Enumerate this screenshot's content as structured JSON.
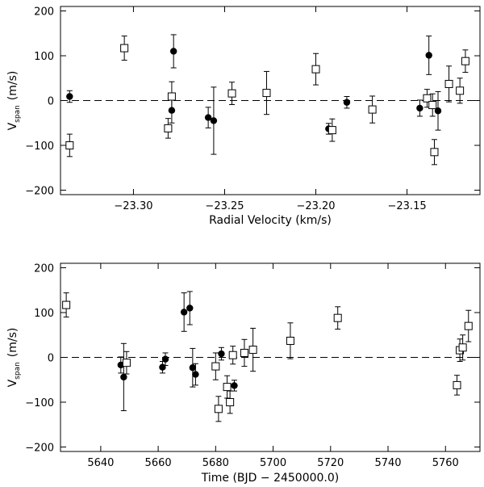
{
  "chart_data": [
    {
      "type": "scatter",
      "xlabel": "Radial Velocity (km/s)",
      "ylabel": "V",
      "ylabel_sub": "span",
      "ylabel_unit": "(m/s)",
      "xlim": [
        -23.34,
        -23.11
      ],
      "ylim": [
        -210,
        210
      ],
      "xticks": [
        -23.3,
        -23.25,
        -23.2,
        -23.15
      ],
      "xtick_labels": [
        "−23.30",
        "−23.25",
        "−23.20",
        "−23.15"
      ],
      "yticks": [
        -200,
        -100,
        0,
        100,
        200
      ],
      "ytick_labels": [
        "−200",
        "−100",
        "0",
        "100",
        "200"
      ],
      "reference_line": 0,
      "series": [
        {
          "name": "filled circles",
          "marker": "circle",
          "points": [
            {
              "x": -23.335,
              "y": 9,
              "err": 13
            },
            {
              "x": -23.278,
              "y": 110,
              "err": 37
            },
            {
              "x": -23.279,
              "y": -22,
              "err": 28
            },
            {
              "x": -23.259,
              "y": -38,
              "err": 23
            },
            {
              "x": -23.256,
              "y": -45,
              "err": 75
            },
            {
              "x": -23.193,
              "y": -63,
              "err": 12
            },
            {
              "x": -23.183,
              "y": -4,
              "err": 13
            },
            {
              "x": -23.143,
              "y": -17,
              "err": 18
            },
            {
              "x": -23.138,
              "y": 101,
              "err": 43
            },
            {
              "x": -23.133,
              "y": -23,
              "err": 43
            }
          ]
        },
        {
          "name": "open squares",
          "marker": "square",
          "points": [
            {
              "x": -23.335,
              "y": -100,
              "err": 25
            },
            {
              "x": -23.305,
              "y": 117,
              "err": 27
            },
            {
              "x": -23.281,
              "y": -62,
              "err": 22
            },
            {
              "x": -23.279,
              "y": 9,
              "err": 33
            },
            {
              "x": -23.246,
              "y": 16,
              "err": 25
            },
            {
              "x": -23.227,
              "y": 17,
              "err": 48
            },
            {
              "x": -23.2,
              "y": 70,
              "err": 35
            },
            {
              "x": -23.191,
              "y": -66,
              "err": 25
            },
            {
              "x": -23.169,
              "y": -20,
              "err": 30
            },
            {
              "x": -23.139,
              "y": 5,
              "err": 20
            },
            {
              "x": -23.136,
              "y": -10,
              "err": 25
            },
            {
              "x": -23.135,
              "y": -115,
              "err": 28
            },
            {
              "x": -23.127,
              "y": 37,
              "err": 40
            },
            {
              "x": -23.121,
              "y": 22,
              "err": 28
            },
            {
              "x": -23.118,
              "y": 88,
              "err": 25
            }
          ]
        }
      ]
    },
    {
      "type": "scatter",
      "xlabel": "Time (BJD − 2450000.0)",
      "ylabel": "V",
      "ylabel_sub": "span",
      "ylabel_unit": "(m/s)",
      "xlim": [
        5626,
        5772
      ],
      "ylim": [
        -210,
        210
      ],
      "xticks": [
        5640,
        5660,
        5680,
        5700,
        5720,
        5740,
        5760
      ],
      "xtick_labels": [
        "5640",
        "5660",
        "5680",
        "5700",
        "5720",
        "5740",
        "5760"
      ],
      "yticks": [
        -200,
        -100,
        0,
        100,
        200
      ],
      "ytick_labels": [
        "−200",
        "−100",
        "0",
        "100",
        "200"
      ],
      "reference_line": 0,
      "series": [
        {
          "name": "filled circles",
          "marker": "circle",
          "points": [
            {
              "x": 5647.0,
              "y": -17,
              "err": 18
            },
            {
              "x": 5648.0,
              "y": -44,
              "err": 75
            },
            {
              "x": 5661.5,
              "y": -22,
              "err": 13
            },
            {
              "x": 5662.5,
              "y": -4,
              "err": 14
            },
            {
              "x": 5669.0,
              "y": 101,
              "err": 43
            },
            {
              "x": 5671.0,
              "y": 110,
              "err": 37
            },
            {
              "x": 5672.0,
              "y": -23,
              "err": 43
            },
            {
              "x": 5673.0,
              "y": -38,
              "err": 24
            },
            {
              "x": 5682.0,
              "y": 8,
              "err": 14
            },
            {
              "x": 5686.5,
              "y": -63,
              "err": 12
            }
          ]
        },
        {
          "name": "open squares",
          "marker": "square",
          "points": [
            {
              "x": 5628.0,
              "y": 117,
              "err": 27
            },
            {
              "x": 5649.0,
              "y": -12,
              "err": 25
            },
            {
              "x": 5680.0,
              "y": -20,
              "err": 30
            },
            {
              "x": 5681.0,
              "y": -115,
              "err": 28
            },
            {
              "x": 5684.0,
              "y": -66,
              "err": 25
            },
            {
              "x": 5685.0,
              "y": -100,
              "err": 25
            },
            {
              "x": 5686.0,
              "y": 5,
              "err": 20
            },
            {
              "x": 5690.0,
              "y": 10,
              "err": 30
            },
            {
              "x": 5693.0,
              "y": 17,
              "err": 48
            },
            {
              "x": 5706.0,
              "y": 37,
              "err": 40
            },
            {
              "x": 5722.5,
              "y": 88,
              "err": 25
            },
            {
              "x": 5764.0,
              "y": -62,
              "err": 22
            },
            {
              "x": 5765.0,
              "y": 16,
              "err": 25
            },
            {
              "x": 5766.0,
              "y": 22,
              "err": 28
            },
            {
              "x": 5768.0,
              "y": 70,
              "err": 35
            }
          ]
        }
      ]
    }
  ]
}
